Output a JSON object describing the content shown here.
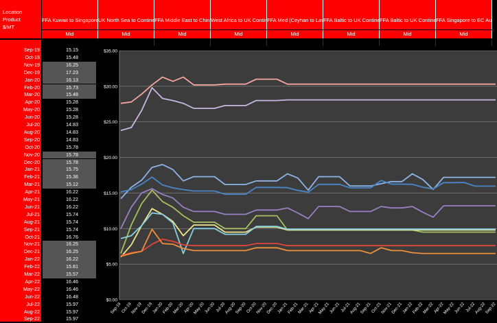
{
  "header": {
    "labels": [
      "Location",
      "Product",
      "$/MT"
    ],
    "routes": [
      {
        "name": "FFA Kuwait to Singapore",
        "sub": "Mid"
      },
      {
        "name": "UK North Sea to Continent",
        "sub": "Mid"
      },
      {
        "name": "FFA Middle East to China",
        "sub": "Mid"
      },
      {
        "name": "West Africa to UK Continent",
        "sub": "Mid"
      },
      {
        "name": "FFA Med (Ceyhan to Lavera)",
        "sub": "Mid"
      },
      {
        "name": "FFA Baltic to UK Continent",
        "sub": "Mid"
      },
      {
        "name": "FFA Baltic to UK Continent",
        "sub": "Mid"
      },
      {
        "name": "FFA Singapore to EC Australia",
        "sub": "Mid"
      }
    ]
  },
  "table": {
    "dates": [
      "Sep-19",
      "Oct-19",
      "Nov-19",
      "Dec-19",
      "Jan-20",
      "Feb-20",
      "Mar-20",
      "Apr-20",
      "May-20",
      "Jun-20",
      "Jul-20",
      "Aug-20",
      "Sep-20",
      "Oct-20",
      "Nov-20",
      "Dec-20",
      "Jan-21",
      "Feb-21",
      "Mar-21",
      "Apr-21",
      "May-21",
      "Jun-21",
      "Jul-21",
      "Aug-21",
      "Sep-21",
      "Oct-21",
      "Nov-21",
      "Dec-21",
      "Jan-22",
      "Feb-22",
      "Mar-22",
      "Apr-22",
      "May-22",
      "Jun-22",
      "Jul-22",
      "Aug-22",
      "Sep-22"
    ],
    "values": [
      "15.15",
      "15.48",
      "16.25",
      "17.23",
      "16.13",
      "15.73",
      "15.48",
      "15.28",
      "15.28",
      "15.28",
      "14.83",
      "14.83",
      "14.83",
      "15.78",
      "15.78",
      "15.78",
      "15.75",
      "15.36",
      "15.12",
      "16.22",
      "16.22",
      "16.22",
      "15.74",
      "15.74",
      "15.74",
      "16.76",
      "16.25",
      "16.25",
      "16.22",
      "15.81",
      "15.57",
      "16.46",
      "16.46",
      "16.48",
      "15.97",
      "15.97",
      "15.97"
    ],
    "highlight": [
      false,
      false,
      true,
      true,
      true,
      true,
      true,
      false,
      false,
      false,
      false,
      false,
      false,
      false,
      true,
      true,
      true,
      true,
      true,
      false,
      false,
      false,
      false,
      false,
      false,
      false,
      true,
      true,
      true,
      true,
      true,
      false,
      false,
      false,
      false,
      false,
      false
    ]
  },
  "chart_data": {
    "type": "line",
    "ylim": [
      0,
      35
    ],
    "yticks": [
      "$0.00",
      "$5.00",
      "$10.00",
      "$15.00",
      "$20.00",
      "$25.00",
      "$30.00",
      "$35.00"
    ],
    "categories": [
      "Sep-19",
      "Oct-19",
      "Nov-19",
      "Dec-19",
      "Jan-20",
      "Feb-20",
      "Mar-20",
      "Apr-20",
      "May-20",
      "Jun-20",
      "Jul-20",
      "Aug-20",
      "Sep-20",
      "Oct-20",
      "Nov-20",
      "Dec-20",
      "Jan-21",
      "Feb-21",
      "Mar-21",
      "Apr-21",
      "May-21",
      "Jun-21",
      "Jul-21",
      "Aug-21",
      "Sep-21",
      "Oct-21",
      "Nov-21",
      "Dec-21",
      "Jan-22",
      "Feb-22",
      "Mar-22",
      "Apr-22",
      "May-22",
      "Jun-22",
      "Jul-22",
      "Aug-22",
      "Sep-22"
    ],
    "series": [
      {
        "color": "#f4a6a0",
        "values": [
          27.6,
          27.8,
          28.9,
          30.2,
          31.3,
          30.7,
          31.3,
          30.2,
          30.2,
          30.2,
          30.3,
          30.3,
          30.3,
          31.0,
          31.0,
          31.0,
          30.3,
          30.3,
          30.3,
          30.3,
          30.3,
          30.3,
          30.3,
          30.3,
          30.3,
          30.3,
          30.3,
          30.3,
          30.3,
          30.3,
          30.3,
          30.3,
          30.3,
          30.3,
          30.3,
          30.3,
          30.3
        ]
      },
      {
        "color": "#c9b8e6",
        "values": [
          23.8,
          24.2,
          26.6,
          29.8,
          28.3,
          28.0,
          27.6,
          26.9,
          26.9,
          26.9,
          27.3,
          27.3,
          27.3,
          28.0,
          28.0,
          28.0,
          28.1,
          28.1,
          28.1,
          28.1,
          28.1,
          28.1,
          28.1,
          28.1,
          28.1,
          28.1,
          28.1,
          28.1,
          28.1,
          28.1,
          28.1,
          28.1,
          28.1,
          28.1,
          28.1,
          28.1,
          28.1
        ]
      },
      {
        "color": "#8fb4e8",
        "values": [
          14.2,
          15.8,
          16.8,
          18.6,
          19.0,
          18.3,
          16.7,
          17.3,
          17.3,
          17.3,
          16.2,
          16.2,
          16.2,
          16.7,
          16.7,
          16.7,
          17.7,
          17.1,
          15.4,
          17.3,
          17.3,
          17.3,
          16.0,
          16.0,
          16.0,
          16.3,
          16.6,
          16.6,
          17.7,
          16.9,
          15.5,
          17.2,
          17.2,
          17.2,
          17.2,
          17.2,
          17.2
        ]
      },
      {
        "color": "#4a86c8",
        "values": [
          15.15,
          15.48,
          16.25,
          17.23,
          16.13,
          15.73,
          15.48,
          15.28,
          15.28,
          15.28,
          14.83,
          14.83,
          14.83,
          15.78,
          15.78,
          15.78,
          15.75,
          15.36,
          15.12,
          16.22,
          16.22,
          16.22,
          15.74,
          15.74,
          15.74,
          16.76,
          16.25,
          16.25,
          16.22,
          15.81,
          15.57,
          16.46,
          16.46,
          16.48,
          15.97,
          15.97,
          15.97
        ]
      },
      {
        "color": "#9b7fc4",
        "values": [
          10.0,
          13.0,
          15.0,
          15.6,
          14.8,
          14.3,
          13.0,
          12.4,
          12.4,
          12.4,
          12.0,
          12.0,
          12.0,
          12.6,
          12.6,
          12.6,
          12.9,
          12.2,
          11.4,
          13.1,
          13.1,
          13.1,
          12.4,
          12.4,
          12.4,
          13.1,
          12.9,
          12.9,
          13.1,
          12.3,
          11.6,
          13.2,
          13.2,
          13.2,
          13.2,
          13.2,
          13.2
        ]
      },
      {
        "color": "#a8c060",
        "values": [
          6.5,
          10.5,
          13.5,
          15.4,
          13.8,
          13.0,
          11.8,
          10.9,
          10.9,
          10.9,
          10.0,
          10.0,
          10.0,
          11.8,
          11.8,
          11.8,
          9.8,
          9.8,
          9.8,
          9.8,
          9.8,
          9.8,
          9.8,
          9.8,
          9.8,
          9.8,
          9.8,
          9.8,
          9.8,
          9.5,
          9.5,
          9.5,
          9.5,
          9.5,
          9.5,
          9.5,
          9.5
        ]
      },
      {
        "color": "#f0e68c",
        "values": [
          6.0,
          7.7,
          10.4,
          12.8,
          12.0,
          11.0,
          9.0,
          10.5,
          10.5,
          10.5,
          9.5,
          9.5,
          9.5,
          10.2,
          10.2,
          10.2,
          9.8,
          9.8,
          9.8,
          9.8,
          9.8,
          9.8,
          9.8,
          9.8,
          9.8,
          9.8,
          9.8,
          9.8,
          9.8,
          9.8,
          9.8,
          9.8,
          9.8,
          9.8,
          9.8,
          9.8,
          9.8
        ]
      },
      {
        "color": "#86d0e0",
        "values": [
          8.6,
          9.0,
          10.4,
          12.2,
          12.0,
          10.8,
          6.5,
          10.0,
          10.0,
          10.0,
          9.2,
          9.2,
          9.2,
          10.3,
          10.3,
          10.3,
          9.9,
          9.9,
          9.9,
          9.9,
          9.9,
          9.9,
          9.9,
          9.9,
          9.9,
          9.9,
          9.9,
          9.9,
          9.9,
          9.9,
          9.9,
          9.9,
          9.9,
          9.9,
          9.9,
          9.9,
          9.9
        ]
      },
      {
        "color": "#e0463a",
        "values": [
          6.2,
          6.6,
          6.8,
          7.8,
          8.5,
          8.2,
          7.7,
          7.6,
          7.6,
          7.6,
          7.6,
          7.6,
          7.6,
          7.9,
          7.9,
          7.9,
          7.6,
          7.6,
          7.6,
          7.6,
          7.6,
          7.6,
          7.6,
          7.6,
          7.6,
          7.6,
          7.6,
          7.6,
          7.6,
          7.6,
          7.6,
          7.6,
          7.6,
          7.6,
          7.6,
          7.6,
          7.6
        ]
      },
      {
        "color": "#f0903a",
        "values": [
          6.1,
          6.5,
          6.8,
          9.9,
          7.9,
          7.8,
          7.2,
          6.9,
          6.9,
          6.9,
          6.9,
          6.9,
          6.9,
          7.3,
          7.3,
          7.3,
          6.9,
          6.9,
          6.9,
          6.9,
          6.9,
          6.9,
          6.9,
          6.9,
          6.5,
          7.3,
          6.9,
          6.9,
          6.6,
          6.5,
          6.5,
          6.5,
          6.5,
          6.5,
          6.5,
          6.5,
          6.5
        ]
      }
    ]
  }
}
